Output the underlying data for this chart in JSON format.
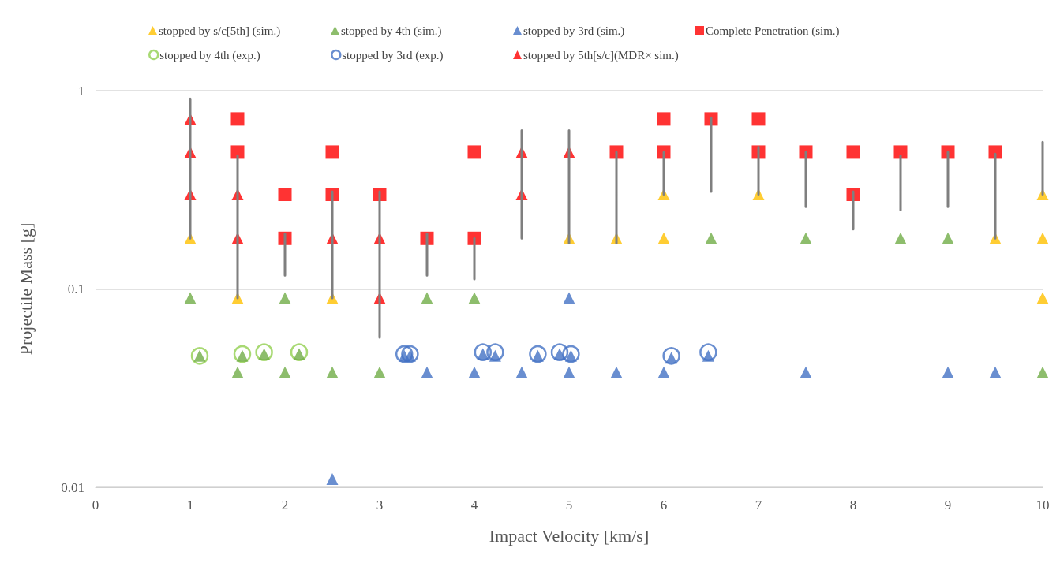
{
  "chart_data": {
    "type": "scatter",
    "xlabel": "Impact Velocity [km/s]",
    "ylabel": "Projectile Mass [g]",
    "xlim": [
      0,
      10
    ],
    "xticks": [
      0,
      1,
      2,
      3,
      4,
      5,
      6,
      7,
      8,
      9,
      10
    ],
    "ylim": [
      0.01,
      1
    ],
    "yticks": [
      0.01,
      0.1,
      1
    ],
    "log": "y",
    "grid": "y",
    "legend": "top",
    "series": [
      {
        "name": "stopped by s/c[5th] (sim.)",
        "color": "#ffc000",
        "marker": "triangle",
        "x": [
          1,
          1.5,
          2.5,
          5,
          5.5,
          6,
          6,
          7,
          9.5,
          10,
          10,
          10
        ],
        "values": [
          0.18,
          0.09,
          0.09,
          0.18,
          0.18,
          0.3,
          0.18,
          0.3,
          0.18,
          0.3,
          0.18,
          0.09
        ]
      },
      {
        "name": "stopped by 4th (sim.)",
        "color": "#70ad47",
        "marker": "triangle",
        "x": [
          1,
          1.5,
          2,
          2,
          2.5,
          3,
          3.5,
          4,
          6.5,
          7.5,
          8.5,
          9,
          10,
          1.1,
          1.55,
          1.78,
          2.15
        ],
        "values": [
          0.09,
          0.038,
          0.09,
          0.038,
          0.038,
          0.038,
          0.09,
          0.09,
          0.18,
          0.18,
          0.18,
          0.18,
          0.038,
          0.046,
          0.046,
          0.047,
          0.047
        ]
      },
      {
        "name": "stopped by 3rd (sim.)",
        "color": "#4472c4",
        "marker": "triangle",
        "x": [
          2.5,
          3.5,
          4,
          4.5,
          5,
          5,
          5.5,
          6,
          7.5,
          9,
          9.5,
          3.26,
          3.32,
          4.09,
          4.22,
          4.67,
          4.9,
          5.02,
          6.08,
          6.47
        ],
        "values": [
          0.011,
          0.038,
          0.038,
          0.038,
          0.09,
          0.038,
          0.038,
          0.038,
          0.038,
          0.038,
          0.038,
          0.046,
          0.046,
          0.047,
          0.046,
          0.046,
          0.047,
          0.046,
          0.045,
          0.046
        ]
      },
      {
        "name": "Complete Penetration (sim.)",
        "color": "#ff0000",
        "marker": "square",
        "x": [
          1.5,
          1.5,
          2,
          2,
          2.5,
          2.5,
          3,
          3.5,
          4,
          4,
          5.5,
          6,
          6,
          6.5,
          7,
          7,
          7.5,
          8,
          8,
          8.5,
          9,
          9.5
        ],
        "values": [
          0.72,
          0.49,
          0.3,
          0.18,
          0.49,
          0.3,
          0.3,
          0.18,
          0.49,
          0.18,
          0.49,
          0.72,
          0.49,
          0.72,
          0.72,
          0.49,
          0.49,
          0.49,
          0.3,
          0.49,
          0.49,
          0.49
        ]
      },
      {
        "name": "stopped by 4th (exp.)",
        "color": "#92d050",
        "marker": "circle",
        "x": [
          1.1,
          1.55,
          1.78,
          2.15
        ],
        "values": [
          0.046,
          0.047,
          0.048,
          0.048
        ]
      },
      {
        "name": "stopped by 3rd (exp.)",
        "color": "#4472c4",
        "marker": "circle",
        "x": [
          3.26,
          3.32,
          4.09,
          4.22,
          4.67,
          4.9,
          5.02,
          6.08,
          6.47
        ],
        "values": [
          0.047,
          0.047,
          0.048,
          0.048,
          0.047,
          0.048,
          0.047,
          0.046,
          0.048
        ]
      },
      {
        "name": "stopped by 5th[s/c](MDR× sim.)",
        "color": "#ff0000",
        "marker": "triangle",
        "x": [
          1,
          1,
          1,
          1.5,
          1.5,
          2.5,
          3,
          3,
          4.5,
          4.5,
          5
        ],
        "values": [
          0.72,
          0.49,
          0.3,
          0.3,
          0.18,
          0.18,
          0.18,
          0.09,
          0.49,
          0.3,
          0.49
        ]
      },
      {
        "type": "line",
        "color": "#7f7f7f",
        "marker": "none",
        "line_style": "solid",
        "x": [
          1,
          1,
          null,
          1.5,
          1.5,
          null,
          2,
          2,
          null,
          2.5,
          2.5,
          null,
          3,
          3,
          null,
          3.5,
          3.5,
          null,
          4,
          4,
          null,
          4.5,
          4.5,
          null,
          5,
          5,
          null,
          5.5,
          5.5,
          null,
          6,
          6,
          null,
          6.5,
          6.5,
          null,
          7,
          7,
          null,
          7.5,
          7.5,
          null,
          8,
          8,
          null,
          8.5,
          8.5,
          null,
          9,
          9,
          null,
          9.5,
          9.5,
          null,
          10,
          10
        ],
        "values": [
          0.91,
          0.18,
          null,
          0.47,
          0.09,
          null,
          0.19,
          0.117,
          null,
          0.31,
          0.09,
          null,
          0.31,
          0.057,
          null,
          0.19,
          0.117,
          null,
          0.18,
          0.112,
          null,
          0.63,
          0.18,
          null,
          0.63,
          0.17,
          null,
          0.49,
          0.17,
          null,
          0.49,
          0.3,
          null,
          0.73,
          0.31,
          null,
          0.52,
          0.3,
          null,
          0.49,
          0.26,
          null,
          0.31,
          0.2,
          null,
          0.47,
          0.25,
          null,
          0.49,
          0.26,
          null,
          0.48,
          0.18,
          null,
          0.55,
          0.3
        ]
      }
    ]
  }
}
